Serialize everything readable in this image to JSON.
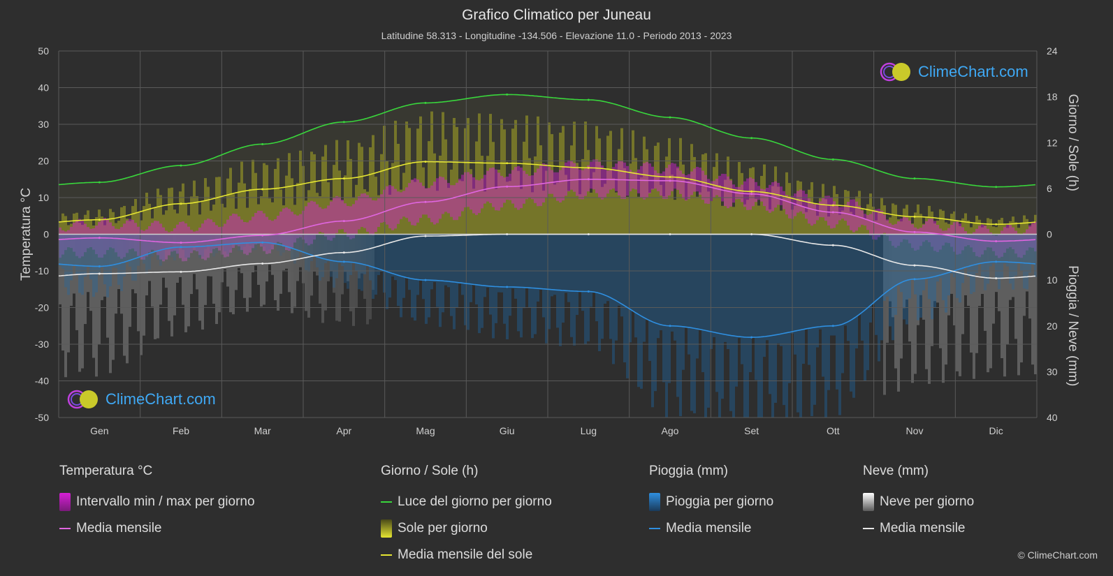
{
  "header": {
    "title": "Grafico Climatico per Juneau",
    "subtitle": "Latitudine 58.313 - Longitudine -134.506 - Elevazione 11.0 - Periodo 2013 - 2023"
  },
  "logo": {
    "text": "ClimeChart.com"
  },
  "copyright": "© ClimeChart.com",
  "colors": {
    "background": "#2e2e2e",
    "grid": "#5a5a5a",
    "daylight": "#39d63c",
    "sun_mean": "#e6e632",
    "temp_mean": "#e066e0",
    "rain_mean": "#2f8fe0",
    "snow_mean": "#e8e8e8",
    "temp_range": "#d61fd6",
    "sun_fill": "#a8a822",
    "rain_fill": "#1e6aa8",
    "snow_fill": "#9a9a9a"
  },
  "legend": {
    "temperature": {
      "heading": "Temperatura °C",
      "range_label": "Intervallo min / max per giorno",
      "mean_label": "Media mensile"
    },
    "sun": {
      "heading": "Giorno / Sole (h)",
      "daylight_label": "Luce del giorno per giorno",
      "sun_label": "Sole per giorno",
      "mean_label": "Media mensile del sole"
    },
    "rain": {
      "heading": "Pioggia (mm)",
      "rain_label": "Pioggia per giorno",
      "mean_label": "Media mensile"
    },
    "snow": {
      "heading": "Neve (mm)",
      "snow_label": "Neve per giorno",
      "mean_label": "Media mensile"
    }
  },
  "chart_data": {
    "type": "line",
    "title": "Grafico Climatico per Juneau",
    "categories": [
      "Gen",
      "Feb",
      "Mar",
      "Apr",
      "Mag",
      "Giu",
      "Lug",
      "Ago",
      "Set",
      "Ott",
      "Nov",
      "Dic"
    ],
    "y_left": {
      "label": "Temperatura °C",
      "range": [
        -50,
        50
      ],
      "ticks": [
        "50",
        "40",
        "30",
        "20",
        "10",
        "0",
        "-10",
        "-20",
        "-30",
        "-40",
        "-50"
      ]
    },
    "y_right_top": {
      "label": "Giorno / Sole (h)",
      "range": [
        0,
        24
      ],
      "ticks": [
        "24",
        "18",
        "12",
        "6",
        "0"
      ]
    },
    "y_right_bottom": {
      "label": "Pioggia / Neve (mm)",
      "range": [
        0,
        40
      ],
      "ticks": [
        "10",
        "20",
        "30",
        "40"
      ]
    },
    "grid": true,
    "series": [
      {
        "name": "Luce del giorno per giorno",
        "unit": "h",
        "values": [
          6.8,
          9.0,
          11.8,
          14.7,
          17.2,
          18.3,
          17.6,
          15.3,
          12.6,
          9.8,
          7.3,
          6.2
        ]
      },
      {
        "name": "Media mensile del sole",
        "unit": "h",
        "values": [
          1.9,
          4.0,
          5.9,
          7.3,
          9.5,
          9.3,
          8.7,
          7.5,
          5.6,
          3.8,
          2.3,
          1.3
        ]
      },
      {
        "name": "Media mensile",
        "unit": "°C",
        "values": [
          -1.0,
          -2.3,
          -0.3,
          3.6,
          8.8,
          13.0,
          15.0,
          14.6,
          11.0,
          6.0,
          0.6,
          -1.9
        ]
      },
      {
        "name": "Media mensile",
        "unit": "mm pioggia",
        "values": [
          7.0,
          2.8,
          1.8,
          6.0,
          10.0,
          11.5,
          12.5,
          20.0,
          22.5,
          20.0,
          9.8,
          6.0
        ]
      },
      {
        "name": "Media mensile",
        "unit": "mm neve",
        "values": [
          8.6,
          8.2,
          6.4,
          4.0,
          0.4,
          0.0,
          0.0,
          0.0,
          0.0,
          2.4,
          6.8,
          9.6
        ]
      }
    ],
    "temp_range_daily": {
      "min": [
        -5,
        -6,
        -4,
        0,
        4,
        8,
        11,
        11,
        8,
        3,
        -3,
        -5
      ],
      "max": [
        3,
        2,
        5,
        9,
        14,
        17,
        19,
        18,
        14,
        9,
        3,
        1
      ]
    }
  }
}
